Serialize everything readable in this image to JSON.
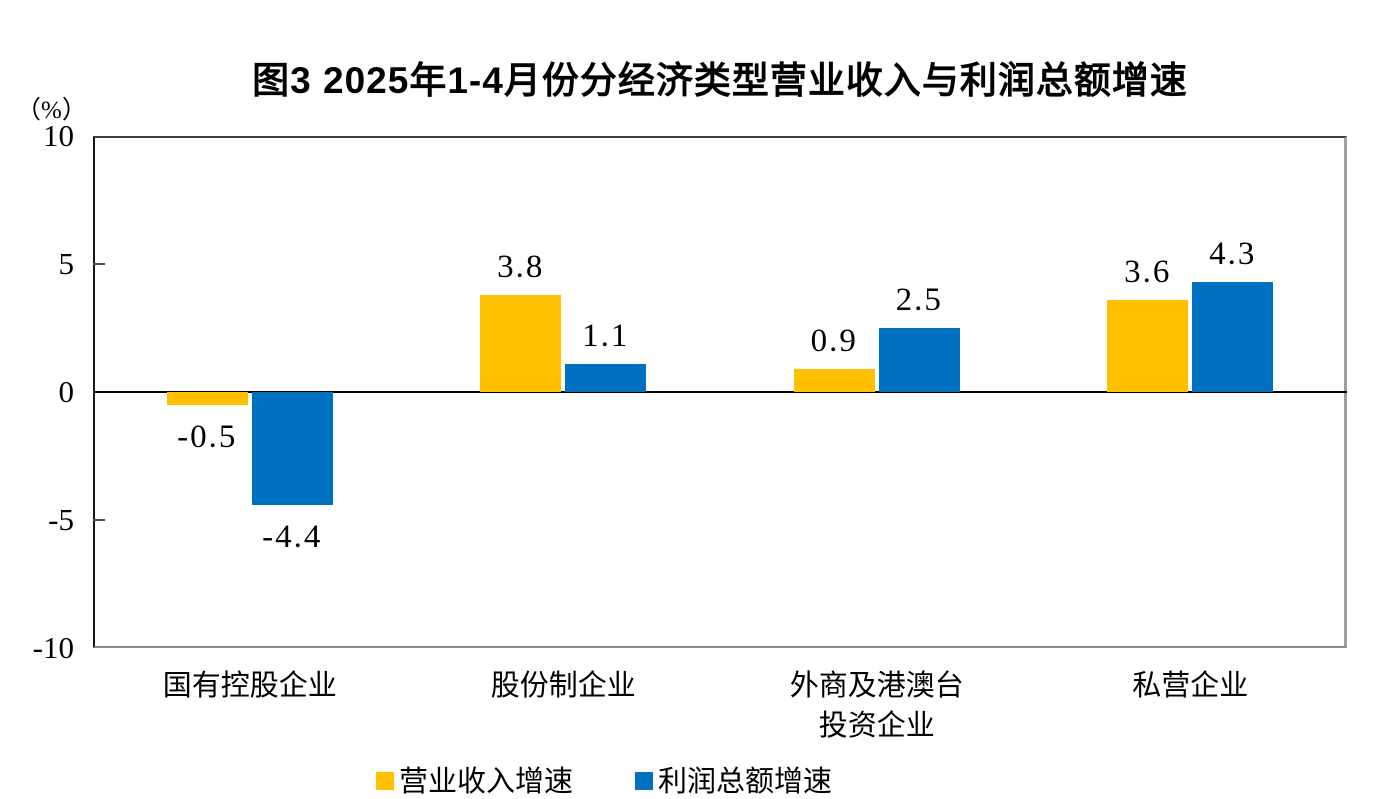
{
  "chart_data": {
    "type": "bar",
    "title": "图3 2025年1-4月份分经济类型营业收入与利润总额增速",
    "unit_label": "（%）",
    "categories": [
      "国有控股企业",
      "股份制企业",
      "外商及港澳台\n投资企业",
      "私营企业"
    ],
    "series": [
      {
        "name": "营业收入增速",
        "color": "#FFC000",
        "values": [
          -0.5,
          3.8,
          0.9,
          3.6
        ]
      },
      {
        "name": "利润总额增速",
        "color": "#0070C0",
        "values": [
          -4.4,
          1.1,
          2.5,
          4.3
        ]
      }
    ],
    "ylim": [
      -10,
      10
    ],
    "yticks": [
      10,
      5,
      0,
      -5,
      -10
    ],
    "grid": false,
    "legend_position": "bottom",
    "value_labels": true,
    "axis_color": "#000000",
    "background_color": "#ffffff"
  }
}
